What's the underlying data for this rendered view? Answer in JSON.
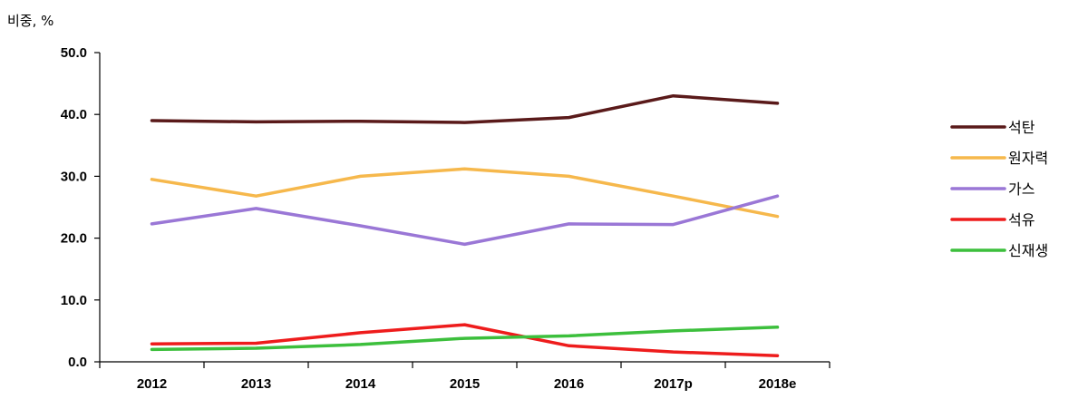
{
  "chart_data": {
    "type": "line",
    "unit_label": "비중, %",
    "categories": [
      "2012",
      "2013",
      "2014",
      "2015",
      "2016",
      "2017p",
      "2018e"
    ],
    "ylim": [
      0,
      50
    ],
    "yticks": [
      "0.0",
      "10.0",
      "20.0",
      "30.0",
      "40.0",
      "50.0"
    ],
    "grid": false,
    "legend_position": "right",
    "series": [
      {
        "name": "석탄",
        "color": "#5a1a1a",
        "values": [
          39.0,
          38.8,
          38.9,
          38.7,
          39.5,
          43.0,
          41.8
        ]
      },
      {
        "name": "원자력",
        "color": "#f6b84c",
        "values": [
          29.5,
          26.8,
          30.0,
          31.2,
          30.0,
          26.8,
          23.5
        ]
      },
      {
        "name": "가스",
        "color": "#9a77d6",
        "values": [
          22.3,
          24.8,
          22.0,
          19.0,
          22.3,
          22.2,
          26.8
        ]
      },
      {
        "name": "석유",
        "color": "#ee1c1c",
        "values": [
          2.9,
          3.0,
          4.7,
          6.0,
          2.6,
          1.6,
          1.0
        ]
      },
      {
        "name": "신재생",
        "color": "#3cbf3c",
        "values": [
          2.0,
          2.2,
          2.8,
          3.8,
          4.2,
          5.0,
          5.6
        ]
      }
    ]
  }
}
